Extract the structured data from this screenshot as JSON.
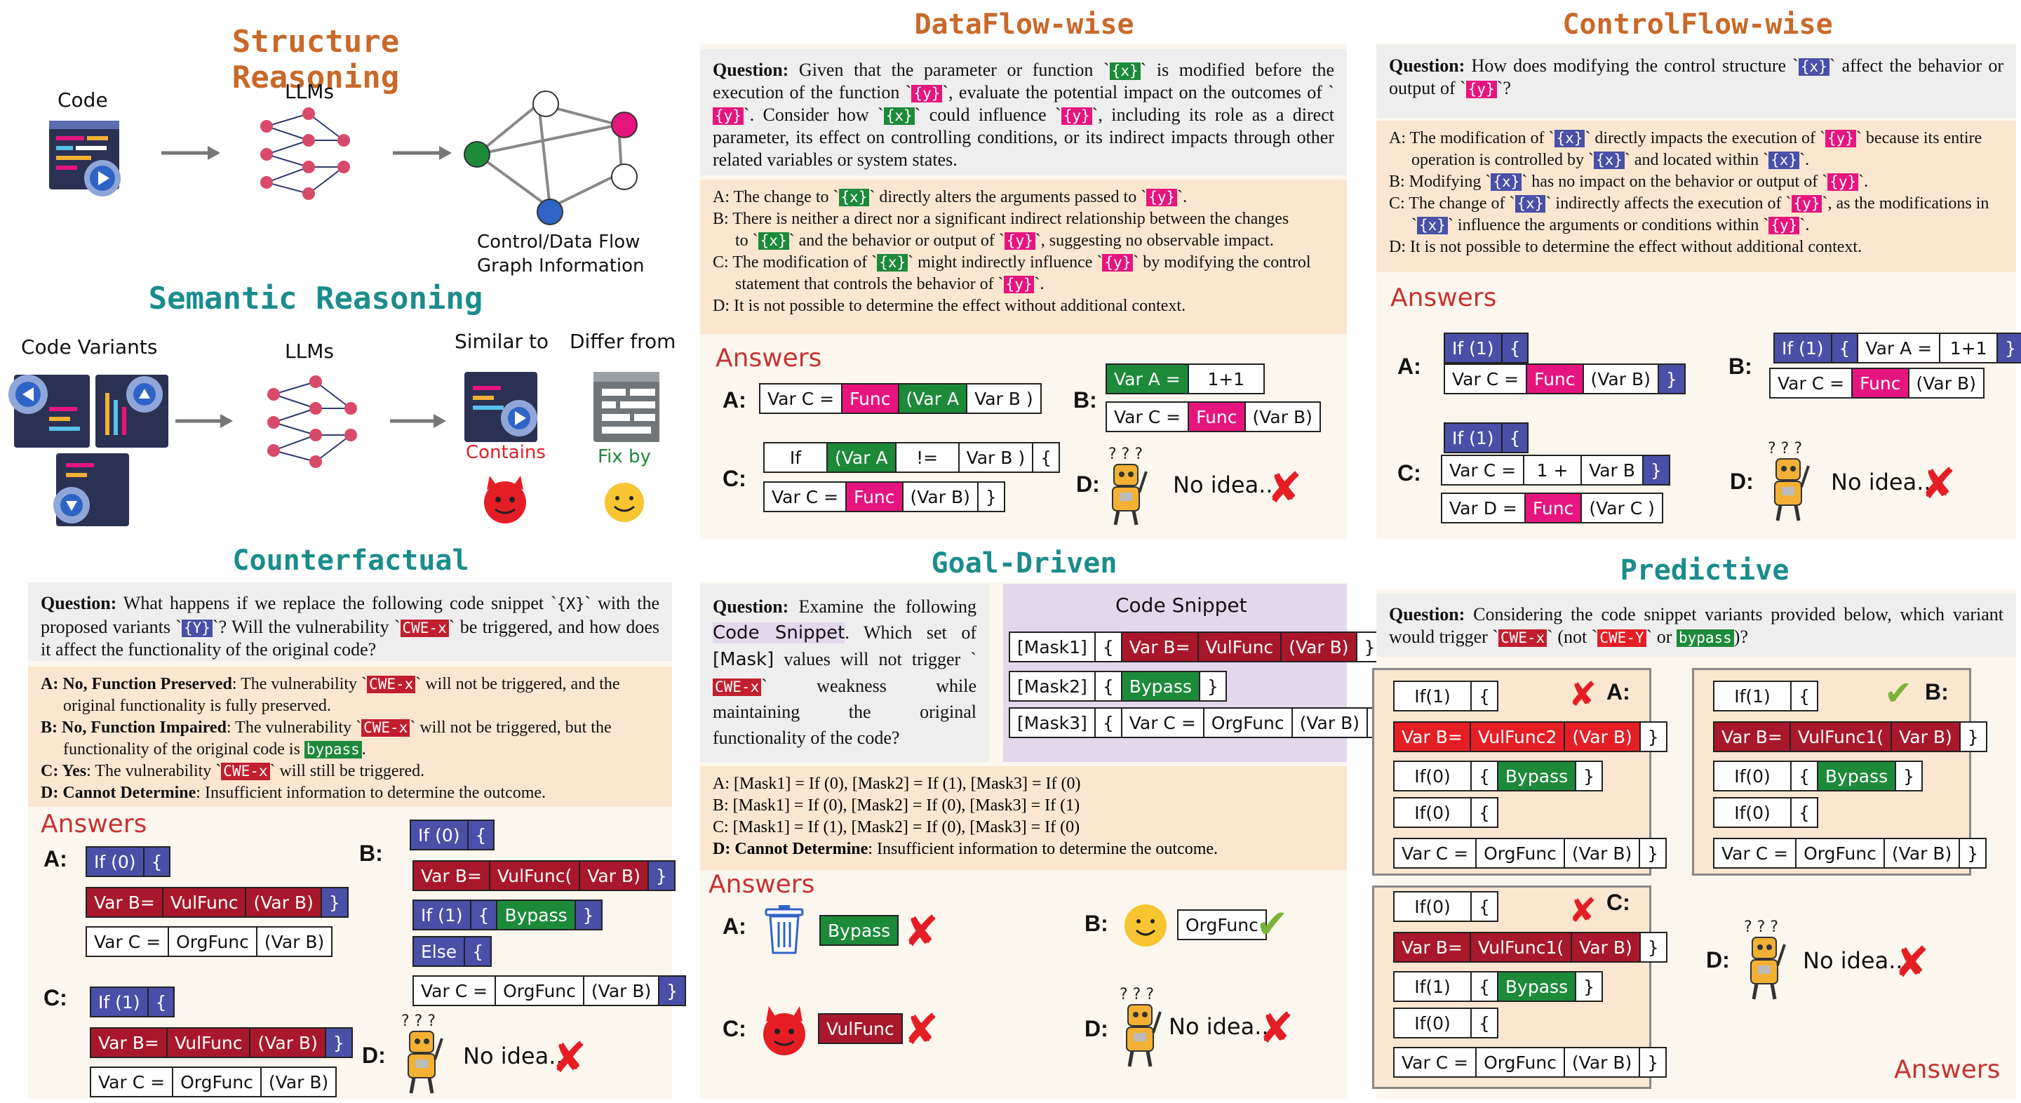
{
  "structure": {
    "title": "Structure Reasoning",
    "code_label": "Code",
    "llm_label": "LLMs",
    "graph_caption_1": "Control/Data Flow",
    "graph_caption_2": "Graph Information"
  },
  "semantic": {
    "title": "Semantic Reasoning",
    "variants_label": "Code Variants",
    "llm_label": "LLMs",
    "similar_label": "Similar to",
    "differ_label": "Differ from",
    "contains_label": "Contains",
    "fixby_label": "Fix by"
  },
  "dataflow": {
    "title": "DataFlow-wise",
    "question_lead": "Question:",
    "q1": " Given that the parameter or function `",
    "q2": "` is modified before the execution of the function `",
    "q3": "`, evaluate the potential impact on the outcomes of `",
    "q4": "`. Consider how `",
    "q5": "` could influence `",
    "q6": "`, including its role as a direct parameter, its effect on controlling conditions, or its indirect impacts through other related variables or system states.",
    "x": "{x}",
    "y": "{y}",
    "optA_1": "A: The change to `",
    "optA_2": "` directly alters the arguments passed to `",
    "optA_3": "`.",
    "optB_1": "B: There is neither a direct nor a significant indirect relationship between the changes",
    "optB_2": "to `",
    "optB_3": "` and the behavior or output of `",
    "optB_4": "`, suggesting no observable impact.",
    "optC_1": "C: The modification of `",
    "optC_2": "` might indirectly influence `",
    "optC_3": "` by modifying the control",
    "optC_4": "statement that controls the behavior of `",
    "optC_5": "`.",
    "optD": "D: It is not possible to determine the effect without additional context.",
    "answers": "Answers",
    "A": "A:",
    "B": "B:",
    "C": "C:",
    "D": "D:",
    "a_cells": [
      "Var C =",
      "Func",
      "(Var A",
      "Var B )"
    ],
    "b_row1": [
      "Var A =",
      "1+1"
    ],
    "b_row2": [
      "Var C =",
      "Func",
      "(Var B)"
    ],
    "c_row1": [
      "If",
      "(Var A",
      "!=",
      "Var B )",
      "{"
    ],
    "c_row2": [
      "Var C =",
      "Func",
      "(Var B)",
      "}"
    ],
    "noidea": "No idea.."
  },
  "controlflow": {
    "title": "ControlFlow-wise",
    "question_lead": "Question:",
    "q1": " How does modifying the control structure `",
    "q2": "` affect the behavior or output of `",
    "q3": "`?",
    "x": "{x}",
    "y": "{y}",
    "optA_1": "A: The modification of `",
    "optA_2": "` directly impacts the execution of `",
    "optA_3": "` because its entire",
    "optA_4": "operation is controlled by `",
    "optA_5": "` and located within `",
    "optA_6": "`.",
    "optB_1": "B: Modifying `",
    "optB_2": "` has no impact on the behavior or output of `",
    "optB_3": "`.",
    "optC_1": "C: The change of `",
    "optC_2": "` indirectly affects the execution of `",
    "optC_3": "`, as the modifications in",
    "optC_4": "`",
    "optC_5": "` influence the arguments or conditions within `",
    "optC_6": "`.",
    "optD": "D: It is not possible to determine the effect without additional context.",
    "answers": "Answers",
    "A": "A:",
    "B": "B:",
    "C": "C:",
    "D": "D:",
    "a_row1": [
      "If (1)",
      "{"
    ],
    "a_row2": [
      "Var C =",
      "Func",
      "(Var B)",
      "}"
    ],
    "b_row1": [
      "If (1)",
      "{",
      "Var A =",
      "1+1",
      "}"
    ],
    "b_row2": [
      "Var C =",
      "Func",
      "(Var B)"
    ],
    "c_row1": [
      "If (1)",
      "{"
    ],
    "c_row2": [
      "Var C =",
      "1 +",
      "Var B",
      "}"
    ],
    "c_row3": [
      "Var D =",
      "Func",
      "(Var C )"
    ],
    "noidea": "No idea.."
  },
  "counterfactual": {
    "title": "Counterfactual",
    "question_lead": "Question:",
    "q1": " What happens if we replace the following code snippet `",
    "q2": "` with the proposed variants `",
    "q3": "`? Will the vulnerability `",
    "q4": "` be triggered, and how does it affect the functionality of the original code?",
    "X": "{X}",
    "Y": "{Y}",
    "cwe": "CWE-x",
    "optA_b": "A: No, Function Preserved",
    "optA_1": ": The vulnerability `",
    "optA_2": "` will not be triggered, and the",
    "optA_3": "original functionality is fully preserved.",
    "optB_b": "B: No, Function Impaired",
    "optB_1": ": The vulnerability `",
    "optB_2": "` will not be triggered, but the",
    "optB_3": "functionality of the original code is ",
    "bypass": "bypass",
    "optB_4": ".",
    "optC_b": "C: Yes",
    "optC_1": ": The vulnerability `",
    "optC_2": "` will still be triggered.",
    "optD_b": "D: Cannot Determine",
    "optD_1": ": Insufficient information to determine the outcome.",
    "answers": "Answers",
    "A": "A:",
    "B": "B:",
    "C": "C:",
    "D": "D:",
    "a_row1": [
      "If (0)",
      "{"
    ],
    "a_row2": [
      "Var B=",
      "VulFunc",
      "(Var B)",
      "}"
    ],
    "a_row3": [
      "Var C =",
      "OrgFunc",
      "(Var B)"
    ],
    "b_row1": [
      "If (0)",
      "{"
    ],
    "b_row2": [
      "Var B=",
      "VulFunc(",
      "Var B)",
      "}"
    ],
    "b_row3": [
      "If (1)",
      "{",
      "Bypass",
      "}"
    ],
    "b_row4": [
      "Else",
      "{"
    ],
    "b_row5": [
      "Var C =",
      "OrgFunc",
      "(Var B)",
      "}"
    ],
    "c_row1": [
      "If (1)",
      "{"
    ],
    "c_row2": [
      "Var B=",
      "VulFunc",
      "(Var B)",
      "}"
    ],
    "c_row3": [
      "Var C =",
      "OrgFunc",
      "(Var B)"
    ],
    "noidea": "No idea.."
  },
  "goaldriven": {
    "title": "Goal-Driven",
    "question_lead": "Question:",
    "q1": " Examine the following ",
    "q_code": "Code Snippet",
    "q2": ". Which set of ",
    "q_mask": "[Mask]",
    "q3": " values will not trigger `",
    "cwe": "CWE-x",
    "q4": "` weakness while maintaining the original functionality of the code?",
    "snippet_title": "Code Snippet",
    "mask1": [
      "[Mask1]",
      "{",
      "Var B=",
      "VulFunc",
      "(Var B)",
      "}"
    ],
    "mask2": [
      "[Mask2]",
      "{",
      "Bypass",
      "}"
    ],
    "mask3": [
      "[Mask3]",
      "{",
      "Var C =",
      "OrgFunc",
      "(Var B)",
      "}"
    ],
    "optA": "A: [Mask1] = If (0), [Mask2] = If (1), [Mask3] = If (0)",
    "optB": "B: [Mask1] = If (0), [Mask2] = If (0), [Mask3] = If (1)",
    "optC": "C: [Mask1] = If (1), [Mask2] = If (0), [Mask3] = If (0)",
    "optD_b": "D: Cannot Determine",
    "optD_1": ": Insufficient information to determine the outcome.",
    "answers": "Answers",
    "A": "A:",
    "B": "B:",
    "C": "C:",
    "D": "D:",
    "a_cell": "Bypass",
    "b_cell": "OrgFunc",
    "c_cell": "VulFunc",
    "noidea": "No idea.."
  },
  "predictive": {
    "title": "Predictive",
    "question_lead": "Question:",
    "q1": " Considering the code snippet variants provided below, which variant would trigger `",
    "cwe_x": "CWE-x",
    "q2": "` (not `",
    "cwe_y": "CWE-Y",
    "q3": "` or ",
    "bypass": "bypass",
    "q4": ")?",
    "A": "A:",
    "B": "B:",
    "C": "C:",
    "D": "D:",
    "a_rows": [
      [
        "If(1)",
        "{"
      ],
      [
        "Var B=",
        "VulFunc2",
        "(Var B)",
        "}"
      ],
      [
        "If(0)",
        "{",
        "Bypass",
        "}"
      ],
      [
        "If(0)",
        "{"
      ],
      [
        "Var C =",
        "OrgFunc",
        "(Var B)",
        "}"
      ]
    ],
    "b_rows": [
      [
        "If(1)",
        "{"
      ],
      [
        "Var B=",
        "VulFunc1(",
        "Var B)",
        "}"
      ],
      [
        "If(0)",
        "{",
        "Bypass",
        "}"
      ],
      [
        "If(0)",
        "{"
      ],
      [
        "Var C =",
        "OrgFunc",
        "(Var B)",
        "}"
      ]
    ],
    "c_rows": [
      [
        "If(0)",
        "{"
      ],
      [
        "Var B=",
        "VulFunc1(",
        "Var B)",
        "}"
      ],
      [
        "If(1)",
        "{",
        "Bypass",
        "}"
      ],
      [
        "If(0)",
        "{"
      ],
      [
        "Var C =",
        "OrgFunc",
        "(Var B)",
        "}"
      ]
    ],
    "noidea": "No idea..",
    "answers": "Answers"
  },
  "colors": {
    "teal": "#1a8c8c",
    "orange": "#c8692a",
    "pink": "#e6157e",
    "green": "#1d8a3a",
    "blue": "#4a4fa8",
    "darkred": "#a8182a"
  }
}
